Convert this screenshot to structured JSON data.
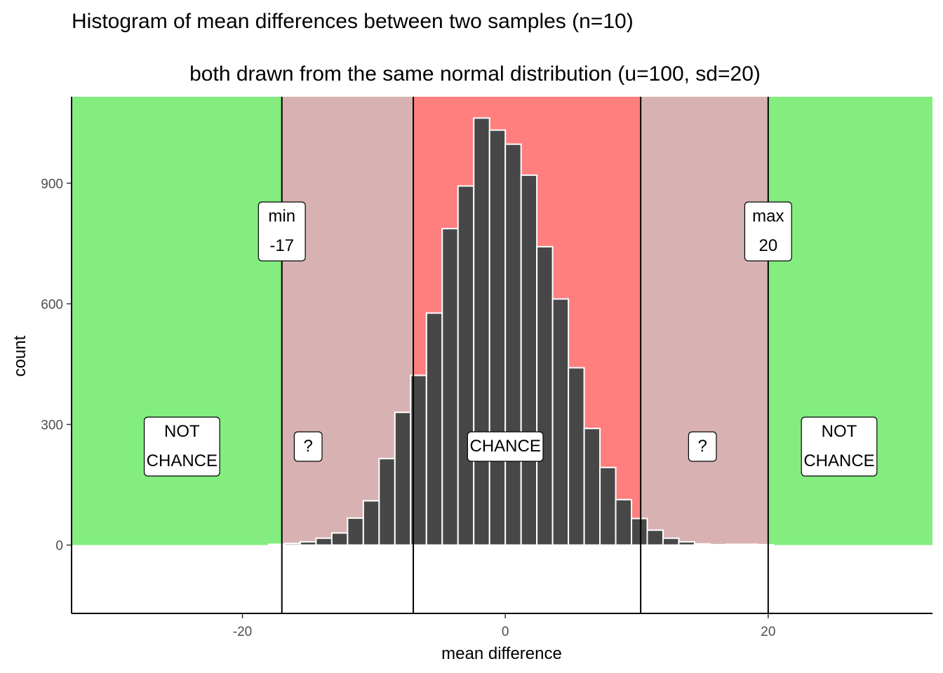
{
  "chart_data": {
    "type": "bar",
    "title": "Histogram of mean differences between two samples (n=10)",
    "subtitle": "both drawn from the same normal distribution (u=100, sd=20)",
    "xlabel": "mean difference",
    "ylabel": "count",
    "xlim": [
      -33,
      32.5
    ],
    "ylim": [
      -170,
      1115
    ],
    "x_ticks": [
      -20,
      0,
      20
    ],
    "y_ticks": [
      0,
      300,
      600,
      900
    ],
    "grid": false,
    "bin_width": 1.2,
    "bars": [
      {
        "x": -17.4,
        "count": 2
      },
      {
        "x": -16.2,
        "count": 4
      },
      {
        "x": -15.0,
        "count": 8
      },
      {
        "x": -13.8,
        "count": 17
      },
      {
        "x": -12.6,
        "count": 30
      },
      {
        "x": -11.4,
        "count": 67
      },
      {
        "x": -10.2,
        "count": 110
      },
      {
        "x": -9.0,
        "count": 215
      },
      {
        "x": -7.8,
        "count": 330
      },
      {
        "x": -6.6,
        "count": 422
      },
      {
        "x": -5.4,
        "count": 577
      },
      {
        "x": -4.2,
        "count": 787
      },
      {
        "x": -3.0,
        "count": 893
      },
      {
        "x": -1.8,
        "count": 1062
      },
      {
        "x": -0.6,
        "count": 1032
      },
      {
        "x": 0.6,
        "count": 997
      },
      {
        "x": 1.8,
        "count": 920
      },
      {
        "x": 3.0,
        "count": 742
      },
      {
        "x": 4.2,
        "count": 612
      },
      {
        "x": 5.4,
        "count": 441
      },
      {
        "x": 6.6,
        "count": 290
      },
      {
        "x": 7.8,
        "count": 193
      },
      {
        "x": 9.0,
        "count": 113
      },
      {
        "x": 10.2,
        "count": 66
      },
      {
        "x": 11.4,
        "count": 37
      },
      {
        "x": 12.6,
        "count": 17
      },
      {
        "x": 13.8,
        "count": 8
      },
      {
        "x": 15.0,
        "count": 3
      },
      {
        "x": 16.2,
        "count": 1
      },
      {
        "x": 17.4,
        "count": 2
      },
      {
        "x": 18.6,
        "count": 2
      },
      {
        "x": 19.8,
        "count": 1
      }
    ],
    "regions": [
      {
        "name": "not-chance-left",
        "x_from": -33,
        "x_to": -17,
        "color": "#83ed80"
      },
      {
        "name": "uncertain-left",
        "x_from": -17,
        "x_to": -7,
        "color": "#d8b2b2"
      },
      {
        "name": "chance",
        "x_from": -7,
        "x_to": 10.3,
        "color": "#ff7f7f"
      },
      {
        "name": "uncertain-right",
        "x_from": 10.3,
        "x_to": 20,
        "color": "#d8b2b2"
      },
      {
        "name": "not-chance-right",
        "x_from": 20,
        "x_to": 32.5,
        "color": "#83ed80"
      }
    ],
    "vlines": [
      -17,
      -7,
      10.3,
      20
    ],
    "annotations": [
      {
        "name": "min-label",
        "lines": [
          "min",
          "-17"
        ],
        "x": -17,
        "y": 780
      },
      {
        "name": "max-label",
        "lines": [
          "max",
          "20"
        ],
        "x": 20,
        "y": 780
      },
      {
        "name": "not-chance-left-label",
        "lines": [
          "NOT",
          "CHANCE"
        ],
        "x": -24.6,
        "y": 245
      },
      {
        "name": "uncertain-left-label",
        "lines": [
          "?"
        ],
        "x": -15,
        "y": 245
      },
      {
        "name": "chance-label",
        "lines": [
          "CHANCE"
        ],
        "x": 0,
        "y": 245
      },
      {
        "name": "uncertain-right-label",
        "lines": [
          "?"
        ],
        "x": 15,
        "y": 245
      },
      {
        "name": "not-chance-right-label",
        "lines": [
          "NOT",
          "CHANCE"
        ],
        "x": 25.4,
        "y": 245
      }
    ],
    "colors": {
      "bar_fill": "#474747",
      "bar_stroke": "#ffffff",
      "line": "#000000",
      "label_bg": "#ffffff"
    }
  }
}
